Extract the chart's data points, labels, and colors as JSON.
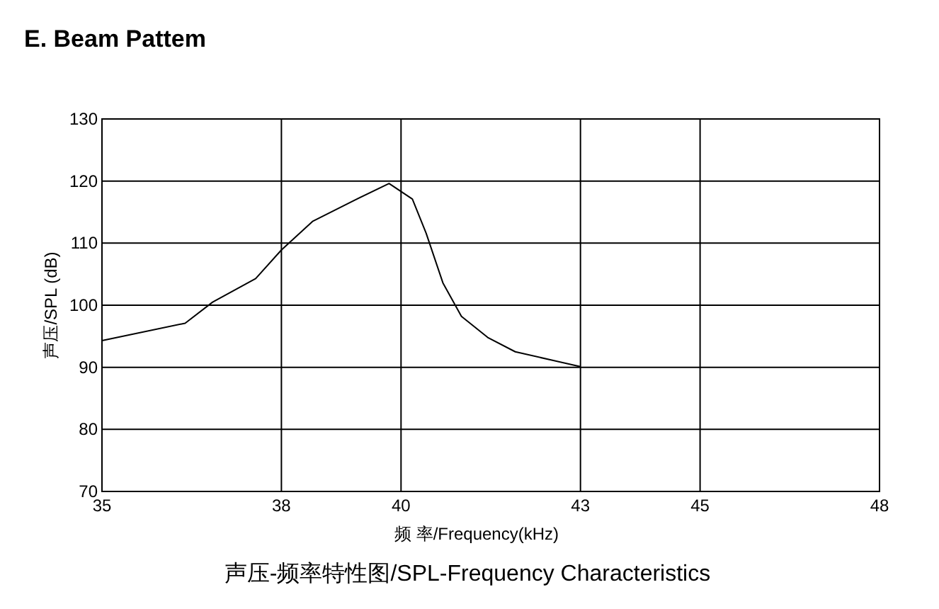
{
  "chart_data": {
    "type": "line",
    "title": "E. Beam Pattem",
    "xlabel": "频 率/Frequency(kHz)",
    "ylabel": "声压/SPL (dB)",
    "annotations": [
      "声压-频率特性图/SPL-Frequency Characteristics"
    ],
    "x": [
      35.0,
      36.39,
      36.85,
      37.57,
      38.0,
      38.52,
      39.22,
      39.8,
      40.19,
      40.42,
      40.7,
      41.01,
      41.45,
      41.91,
      43.0
    ],
    "values": [
      94.3,
      97.1,
      100.5,
      104.3,
      108.9,
      113.5,
      116.9,
      119.6,
      117.1,
      111.6,
      103.6,
      98.2,
      94.8,
      92.5,
      90.1
    ],
    "color": "#000000",
    "xlim": [
      35,
      48
    ],
    "xticks": [
      35,
      38,
      40,
      43,
      45,
      48
    ],
    "ylim": [
      70,
      130
    ],
    "yticks": [
      70,
      80,
      90,
      100,
      110,
      120,
      130
    ],
    "grid": true,
    "marker": "none",
    "line_style": "solid"
  }
}
